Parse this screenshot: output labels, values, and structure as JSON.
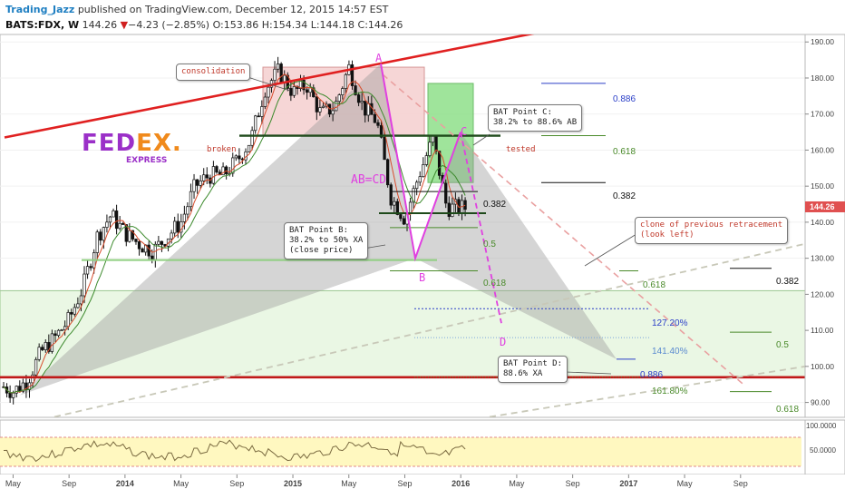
{
  "header": {
    "author": "Trading_Jazz",
    "published": "published on TradingView.com, December 12, 2015 14:57 EST",
    "symbol": "BATS:FDX, W",
    "last": "144.26",
    "change_arrow": "▼",
    "change": "−4.23 (−2.85%)",
    "open": "O:153.86",
    "high": "H:154.34",
    "low": "L:144.18",
    "close": "C:144.26"
  },
  "logo": {
    "text": "FEDEX",
    "dot": ".",
    "sub": "EXPRESS",
    "fed_color": "#9b30c8",
    "ex_color": "#f08a1c"
  },
  "annotations": {
    "consolidation": "consolidation",
    "broken": "broken",
    "tested": "tested",
    "abcd": "AB=CD",
    "A": "A",
    "B": "B",
    "C": "C",
    "D": "D",
    "bat_b": "BAT Point B:\n38.2% to 50% XA\n(close price)",
    "bat_c": "BAT Point C:\n38.2% to 88.6% AB",
    "bat_d": "BAT Point D:\n88.6% XA",
    "clone": "clone of previous retracement\n(look left)"
  },
  "fib_labels": {
    "c886": "0.886",
    "c618": "0.618",
    "c382": "0.382",
    "b382": "0.382",
    "b5": "0.5",
    "b618": "0.618",
    "e1272": "127.20%",
    "e1414": "141.40%",
    "e1618": "161.80%",
    "d886": "0.886",
    "r382": "0.382",
    "r618": "0.618",
    "r5": "0.5",
    "r618b": "0.618"
  },
  "colors": {
    "trendline": "#e02020",
    "support": "#c01818",
    "green_zone": "#eaf7e4",
    "osc_band": "#fff8c0",
    "ma_red": "#d84c2c",
    "ma_green": "#3c8a2c",
    "pattern_purple": "#e040e0"
  },
  "chart_data": {
    "type": "candlestick",
    "y_axis": {
      "side": "right",
      "ylim": [
        87,
        197
      ],
      "ticks": [
        190,
        180,
        170,
        160,
        150,
        140,
        130,
        120,
        110,
        100,
        90
      ],
      "tick_labels": [
        "190.00",
        "180.00",
        "170.00",
        "160.00",
        "150.00",
        "140.00",
        "130.00",
        "120.00",
        "110.00",
        "100.00",
        "90.00"
      ]
    },
    "x_axis": {
      "tick_labels": [
        "May",
        "Sep",
        "2014",
        "May",
        "Sep",
        "2015",
        "May",
        "Sep",
        "2016",
        "May",
        "Sep",
        "2017",
        "May",
        "Sep"
      ]
    },
    "price_points": [
      {
        "date": "2013-04",
        "price": 95
      },
      {
        "date": "2013-05",
        "price": 93
      },
      {
        "date": "2013-06",
        "price": 96
      },
      {
        "date": "2013-07",
        "price": 104
      },
      {
        "date": "2013-08",
        "price": 108
      },
      {
        "date": "2013-09",
        "price": 113
      },
      {
        "date": "2013-10",
        "price": 122
      },
      {
        "date": "2013-11",
        "price": 136
      },
      {
        "date": "2013-12",
        "price": 142
      },
      {
        "date": "2014-01",
        "price": 137
      },
      {
        "date": "2014-02",
        "price": 134
      },
      {
        "date": "2014-03",
        "price": 132
      },
      {
        "date": "2014-04",
        "price": 136
      },
      {
        "date": "2014-05",
        "price": 140
      },
      {
        "date": "2014-06",
        "price": 150
      },
      {
        "date": "2014-07",
        "price": 153
      },
      {
        "date": "2014-08",
        "price": 153
      },
      {
        "date": "2014-09",
        "price": 157
      },
      {
        "date": "2014-10",
        "price": 163
      },
      {
        "date": "2014-11",
        "price": 177
      },
      {
        "date": "2014-12",
        "price": 182
      },
      {
        "date": "2015-01",
        "price": 176
      },
      {
        "date": "2015-02",
        "price": 178
      },
      {
        "date": "2015-03",
        "price": 170
      },
      {
        "date": "2015-04",
        "price": 172
      },
      {
        "date": "2015-05",
        "price": 183
      },
      {
        "date": "2015-06",
        "price": 172
      },
      {
        "date": "2015-07",
        "price": 168
      },
      {
        "date": "2015-08",
        "price": 147
      },
      {
        "date": "2015-09",
        "price": 141
      },
      {
        "date": "2015-10",
        "price": 153
      },
      {
        "date": "2015-11",
        "price": 163
      },
      {
        "date": "2015-12",
        "price": 144
      }
    ],
    "horizontal_levels": [
      {
        "label": "broken / tested",
        "value": 164
      },
      {
        "label": "0.886",
        "value": 178.5
      },
      {
        "label": "0.618",
        "value": 164
      },
      {
        "label": "0.382",
        "value": 151
      },
      {
        "label": "0.382",
        "value": 148.5
      },
      {
        "label": "0.5",
        "value": 138.5
      },
      {
        "label": "0.618",
        "value": 126.5
      },
      {
        "label": "127.20%",
        "value": 116
      },
      {
        "label": "141.40%",
        "value": 108
      },
      {
        "label": "161.80%",
        "value": 97
      },
      {
        "label": "0.886",
        "value": 102
      },
      {
        "label": "0.382",
        "value": 127.2
      },
      {
        "label": "0.618",
        "value": 126.5
      },
      {
        "label": "0.5",
        "value": 109.5
      },
      {
        "label": "0.618",
        "value": 93
      },
      {
        "label": "support",
        "value": 97
      }
    ],
    "pattern": {
      "A": 184,
      "B": 130,
      "C": 165,
      "D": 112
    }
  },
  "oscillator": {
    "tick_labels": [
      "100.0000",
      "50.0000"
    ]
  }
}
